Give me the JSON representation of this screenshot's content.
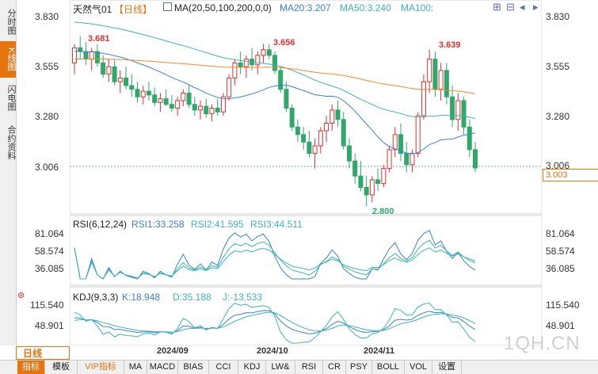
{
  "left_tabs": [
    {
      "label": "分时图",
      "active": false
    },
    {
      "label": "K线图",
      "active": true
    },
    {
      "label": "闪电图",
      "active": false
    },
    {
      "label": "合约资料",
      "active": false
    }
  ],
  "header": {
    "name": "天然气01",
    "period": "【日线】",
    "ma_label": "MA(20,50,100,200,0,0)",
    "ma20": "MA20:3.207",
    "ma50": "MA50:3.240",
    "ma100": "MA100:"
  },
  "price_axis": [
    "3.830",
    "3.555",
    "3.280",
    "3.006"
  ],
  "current_price": "3.003",
  "annotations": {
    "high1": "3.681",
    "high2": "3.656",
    "high3": "3.639",
    "low": "2.800"
  },
  "rsi": {
    "label": "RSI(6,12,24)",
    "rsi1": "RSI1:33.258",
    "rsi2": "RSI2:41.595",
    "rsi3": "RSI3:44.511",
    "axis": [
      "81.064",
      "58.574",
      "36.085"
    ]
  },
  "kdj": {
    "label": "KDJ(9,3,3)",
    "k": "K:18.948",
    "d": "D:35.188",
    "j": "J:-13.533",
    "axis": [
      "115.540",
      "48.901"
    ]
  },
  "dates": [
    "2024/09",
    "2024/10",
    "2024/11"
  ],
  "period_selector": "日线",
  "toolbar": [
    "指标",
    "模板",
    "VIP指标",
    "MA",
    "MACD",
    "BIAS",
    "CCI",
    "KDJ",
    "LW&",
    "RSI",
    "CR",
    "PSY",
    "BOLL",
    "VOL",
    "设置"
  ],
  "watermark": "1QH.CN",
  "colors": {
    "up": "#e03131",
    "down": "#2fa86a",
    "ma20": "#3d7fd8",
    "ma50": "#3fb4b4",
    "ma100": "#f08a2b",
    "accent": "#e8740e"
  },
  "chart_data": {
    "type": "candlestick",
    "ylim": [
      2.78,
      3.86
    ],
    "candles": [
      [
        3.56,
        3.66,
        3.5,
        3.64
      ],
      [
        3.64,
        3.7,
        3.58,
        3.62
      ],
      [
        3.62,
        3.67,
        3.55,
        3.58
      ],
      [
        3.58,
        3.64,
        3.52,
        3.62
      ],
      [
        3.62,
        3.66,
        3.54,
        3.56
      ],
      [
        3.56,
        3.6,
        3.48,
        3.5
      ],
      [
        3.5,
        3.58,
        3.46,
        3.54
      ],
      [
        3.54,
        3.58,
        3.44,
        3.46
      ],
      [
        3.46,
        3.52,
        3.4,
        3.48
      ],
      [
        3.48,
        3.54,
        3.42,
        3.44
      ],
      [
        3.44,
        3.5,
        3.38,
        3.42
      ],
      [
        3.42,
        3.46,
        3.35,
        3.38
      ],
      [
        3.38,
        3.44,
        3.34,
        3.41
      ],
      [
        3.41,
        3.46,
        3.36,
        3.39
      ],
      [
        3.39,
        3.43,
        3.33,
        3.35
      ],
      [
        3.35,
        3.4,
        3.3,
        3.37
      ],
      [
        3.37,
        3.42,
        3.33,
        3.34
      ],
      [
        3.34,
        3.39,
        3.3,
        3.32
      ],
      [
        3.32,
        3.38,
        3.28,
        3.36
      ],
      [
        3.36,
        3.42,
        3.33,
        3.4
      ],
      [
        3.4,
        3.44,
        3.32,
        3.34
      ],
      [
        3.34,
        3.38,
        3.28,
        3.31
      ],
      [
        3.31,
        3.36,
        3.26,
        3.33
      ],
      [
        3.33,
        3.37,
        3.27,
        3.29
      ],
      [
        3.29,
        3.34,
        3.25,
        3.32
      ],
      [
        3.32,
        3.37,
        3.28,
        3.3
      ],
      [
        3.3,
        3.4,
        3.28,
        3.38
      ],
      [
        3.38,
        3.5,
        3.36,
        3.48
      ],
      [
        3.48,
        3.58,
        3.44,
        3.56
      ],
      [
        3.56,
        3.62,
        3.5,
        3.54
      ],
      [
        3.54,
        3.6,
        3.48,
        3.58
      ],
      [
        3.58,
        3.64,
        3.52,
        3.55
      ],
      [
        3.55,
        3.62,
        3.5,
        3.6
      ],
      [
        3.6,
        3.66,
        3.56,
        3.63
      ],
      [
        3.63,
        3.66,
        3.58,
        3.6
      ],
      [
        3.6,
        3.62,
        3.5,
        3.52
      ],
      [
        3.52,
        3.54,
        3.4,
        3.42
      ],
      [
        3.42,
        3.46,
        3.3,
        3.32
      ],
      [
        3.32,
        3.34,
        3.2,
        3.22
      ],
      [
        3.22,
        3.26,
        3.14,
        3.18
      ],
      [
        3.18,
        3.22,
        3.1,
        3.14
      ],
      [
        3.14,
        3.2,
        3.06,
        3.08
      ],
      [
        3.08,
        3.16,
        3.0,
        3.12
      ],
      [
        3.12,
        3.22,
        3.08,
        3.2
      ],
      [
        3.2,
        3.28,
        3.14,
        3.24
      ],
      [
        3.24,
        3.34,
        3.2,
        3.31
      ],
      [
        3.31,
        3.36,
        3.22,
        3.26
      ],
      [
        3.26,
        3.3,
        3.1,
        3.12
      ],
      [
        3.12,
        3.16,
        3.0,
        3.04
      ],
      [
        3.04,
        3.08,
        2.92,
        2.96
      ],
      [
        2.96,
        3.04,
        2.88,
        2.9
      ],
      [
        2.9,
        2.96,
        2.8,
        2.86
      ],
      [
        2.86,
        2.96,
        2.82,
        2.94
      ],
      [
        2.94,
        3.0,
        2.88,
        2.92
      ],
      [
        2.92,
        3.02,
        2.9,
        3.0
      ],
      [
        3.0,
        3.12,
        2.98,
        3.1
      ],
      [
        3.1,
        3.22,
        3.06,
        3.18
      ],
      [
        3.18,
        3.24,
        3.04,
        3.08
      ],
      [
        3.08,
        3.14,
        2.98,
        3.02
      ],
      [
        3.02,
        3.1,
        2.98,
        3.08
      ],
      [
        3.08,
        3.3,
        3.06,
        3.28
      ],
      [
        3.28,
        3.5,
        3.26,
        3.46
      ],
      [
        3.46,
        3.63,
        3.4,
        3.58
      ],
      [
        3.58,
        3.62,
        3.38,
        3.42
      ],
      [
        3.42,
        3.56,
        3.36,
        3.52
      ],
      [
        3.52,
        3.56,
        3.34,
        3.38
      ],
      [
        3.38,
        3.44,
        3.22,
        3.26
      ],
      [
        3.26,
        3.4,
        3.2,
        3.36
      ],
      [
        3.36,
        3.38,
        3.18,
        3.22
      ],
      [
        3.22,
        3.26,
        3.06,
        3.1
      ],
      [
        3.1,
        3.14,
        2.98,
        3.003
      ]
    ]
  }
}
